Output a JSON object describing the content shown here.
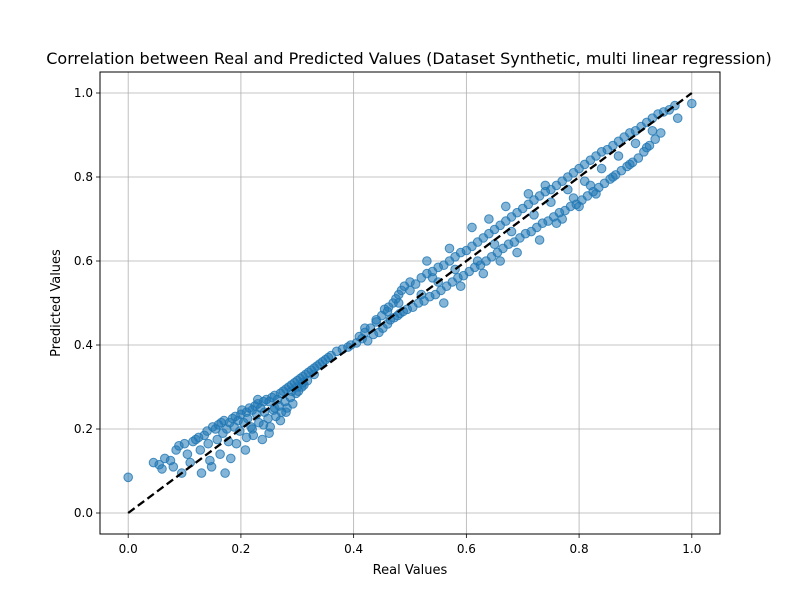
{
  "chart_data": {
    "type": "scatter",
    "title": "Correlation between Real and Predicted Values (Dataset Synthetic, multi linear regression)",
    "xlabel": "Real Values",
    "ylabel": "Predicted Values",
    "xlim": [
      -0.05,
      1.05
    ],
    "ylim": [
      -0.05,
      1.05
    ],
    "xticks": [
      0.0,
      0.2,
      0.4,
      0.6,
      0.8,
      1.0
    ],
    "yticks": [
      0.0,
      0.2,
      0.4,
      0.6,
      0.8,
      1.0
    ],
    "xtick_labels": [
      "0.0",
      "0.2",
      "0.4",
      "0.6",
      "0.8",
      "1.0"
    ],
    "ytick_labels": [
      "0.0",
      "0.2",
      "0.4",
      "0.6",
      "0.8",
      "1.0"
    ],
    "grid": true,
    "point_color": "#1f77b4",
    "point_alpha": 0.55,
    "reference_line": {
      "x": [
        0,
        1
      ],
      "y": [
        0,
        1
      ],
      "style": "dashed",
      "color": "#000000"
    },
    "series": [
      {
        "points": [
          [
            0.0,
            0.085
          ],
          [
            0.045,
            0.12
          ],
          [
            0.055,
            0.115
          ],
          [
            0.06,
            0.105
          ],
          [
            0.065,
            0.13
          ],
          [
            0.075,
            0.125
          ],
          [
            0.08,
            0.11
          ],
          [
            0.085,
            0.15
          ],
          [
            0.09,
            0.16
          ],
          [
            0.095,
            0.095
          ],
          [
            0.1,
            0.165
          ],
          [
            0.105,
            0.14
          ],
          [
            0.11,
            0.12
          ],
          [
            0.115,
            0.17
          ],
          [
            0.12,
            0.175
          ],
          [
            0.125,
            0.18
          ],
          [
            0.128,
            0.15
          ],
          [
            0.13,
            0.095
          ],
          [
            0.135,
            0.185
          ],
          [
            0.14,
            0.195
          ],
          [
            0.142,
            0.165
          ],
          [
            0.145,
            0.125
          ],
          [
            0.148,
            0.11
          ],
          [
            0.15,
            0.205
          ],
          [
            0.155,
            0.2
          ],
          [
            0.158,
            0.175
          ],
          [
            0.16,
            0.21
          ],
          [
            0.163,
            0.14
          ],
          [
            0.165,
            0.215
          ],
          [
            0.168,
            0.19
          ],
          [
            0.17,
            0.22
          ],
          [
            0.172,
            0.095
          ],
          [
            0.175,
            0.2
          ],
          [
            0.178,
            0.17
          ],
          [
            0.18,
            0.215
          ],
          [
            0.182,
            0.13
          ],
          [
            0.185,
            0.225
          ],
          [
            0.188,
            0.205
          ],
          [
            0.19,
            0.23
          ],
          [
            0.192,
            0.165
          ],
          [
            0.195,
            0.22
          ],
          [
            0.198,
            0.195
          ],
          [
            0.2,
            0.235
          ],
          [
            0.202,
            0.245
          ],
          [
            0.205,
            0.215
          ],
          [
            0.208,
            0.15
          ],
          [
            0.21,
            0.24
          ],
          [
            0.212,
            0.225
          ],
          [
            0.215,
            0.25
          ],
          [
            0.218,
            0.205
          ],
          [
            0.22,
            0.245
          ],
          [
            0.222,
            0.185
          ],
          [
            0.225,
            0.255
          ],
          [
            0.228,
            0.235
          ],
          [
            0.23,
            0.26
          ],
          [
            0.232,
            0.215
          ],
          [
            0.235,
            0.25
          ],
          [
            0.238,
            0.175
          ],
          [
            0.24,
            0.265
          ],
          [
            0.242,
            0.24
          ],
          [
            0.245,
            0.27
          ],
          [
            0.248,
            0.225
          ],
          [
            0.25,
            0.265
          ],
          [
            0.252,
            0.205
          ],
          [
            0.255,
            0.275
          ],
          [
            0.258,
            0.245
          ],
          [
            0.26,
            0.28
          ],
          [
            0.262,
            0.23
          ],
          [
            0.265,
            0.27
          ],
          [
            0.268,
            0.255
          ],
          [
            0.27,
            0.285
          ],
          [
            0.272,
            0.24
          ],
          [
            0.275,
            0.29
          ],
          [
            0.278,
            0.265
          ],
          [
            0.28,
            0.295
          ],
          [
            0.282,
            0.25
          ],
          [
            0.285,
            0.3
          ],
          [
            0.288,
            0.275
          ],
          [
            0.29,
            0.305
          ],
          [
            0.292,
            0.26
          ],
          [
            0.295,
            0.31
          ],
          [
            0.298,
            0.285
          ],
          [
            0.3,
            0.315
          ],
          [
            0.302,
            0.29
          ],
          [
            0.305,
            0.32
          ],
          [
            0.308,
            0.3
          ],
          [
            0.31,
            0.325
          ],
          [
            0.312,
            0.305
          ],
          [
            0.315,
            0.33
          ],
          [
            0.318,
            0.315
          ],
          [
            0.32,
            0.335
          ],
          [
            0.325,
            0.34
          ],
          [
            0.33,
            0.345
          ],
          [
            0.335,
            0.35
          ],
          [
            0.34,
            0.355
          ],
          [
            0.345,
            0.36
          ],
          [
            0.35,
            0.365
          ],
          [
            0.355,
            0.37
          ],
          [
            0.36,
            0.375
          ],
          [
            0.37,
            0.385
          ],
          [
            0.38,
            0.39
          ],
          [
            0.39,
            0.395
          ],
          [
            0.395,
            0.4
          ],
          [
            0.405,
            0.405
          ],
          [
            0.41,
            0.42
          ],
          [
            0.415,
            0.415
          ],
          [
            0.42,
            0.43
          ],
          [
            0.425,
            0.41
          ],
          [
            0.43,
            0.44
          ],
          [
            0.435,
            0.425
          ],
          [
            0.44,
            0.455
          ],
          [
            0.445,
            0.43
          ],
          [
            0.45,
            0.47
          ],
          [
            0.452,
            0.44
          ],
          [
            0.455,
            0.485
          ],
          [
            0.46,
            0.45
          ],
          [
            0.462,
            0.49
          ],
          [
            0.465,
            0.46
          ],
          [
            0.47,
            0.5
          ],
          [
            0.472,
            0.465
          ],
          [
            0.475,
            0.51
          ],
          [
            0.478,
            0.47
          ],
          [
            0.48,
            0.52
          ],
          [
            0.482,
            0.475
          ],
          [
            0.485,
            0.53
          ],
          [
            0.488,
            0.48
          ],
          [
            0.49,
            0.54
          ],
          [
            0.495,
            0.485
          ],
          [
            0.5,
            0.55
          ],
          [
            0.505,
            0.49
          ],
          [
            0.51,
            0.545
          ],
          [
            0.515,
            0.5
          ],
          [
            0.52,
            0.56
          ],
          [
            0.525,
            0.505
          ],
          [
            0.53,
            0.57
          ],
          [
            0.535,
            0.515
          ],
          [
            0.54,
            0.575
          ],
          [
            0.545,
            0.52
          ],
          [
            0.55,
            0.585
          ],
          [
            0.555,
            0.53
          ],
          [
            0.56,
            0.59
          ],
          [
            0.565,
            0.54
          ],
          [
            0.57,
            0.6
          ],
          [
            0.575,
            0.55
          ],
          [
            0.58,
            0.61
          ],
          [
            0.585,
            0.56
          ],
          [
            0.59,
            0.62
          ],
          [
            0.595,
            0.565
          ],
          [
            0.6,
            0.625
          ],
          [
            0.605,
            0.575
          ],
          [
            0.61,
            0.635
          ],
          [
            0.615,
            0.585
          ],
          [
            0.62,
            0.645
          ],
          [
            0.625,
            0.59
          ],
          [
            0.63,
            0.655
          ],
          [
            0.635,
            0.6
          ],
          [
            0.64,
            0.665
          ],
          [
            0.645,
            0.61
          ],
          [
            0.65,
            0.675
          ],
          [
            0.655,
            0.62
          ],
          [
            0.66,
            0.685
          ],
          [
            0.665,
            0.63
          ],
          [
            0.67,
            0.695
          ],
          [
            0.675,
            0.64
          ],
          [
            0.68,
            0.705
          ],
          [
            0.685,
            0.645
          ],
          [
            0.69,
            0.715
          ],
          [
            0.695,
            0.655
          ],
          [
            0.7,
            0.725
          ],
          [
            0.705,
            0.665
          ],
          [
            0.71,
            0.735
          ],
          [
            0.715,
            0.67
          ],
          [
            0.72,
            0.745
          ],
          [
            0.725,
            0.68
          ],
          [
            0.73,
            0.755
          ],
          [
            0.735,
            0.69
          ],
          [
            0.74,
            0.765
          ],
          [
            0.745,
            0.695
          ],
          [
            0.75,
            0.77
          ],
          [
            0.755,
            0.705
          ],
          [
            0.76,
            0.78
          ],
          [
            0.765,
            0.715
          ],
          [
            0.77,
            0.79
          ],
          [
            0.775,
            0.72
          ],
          [
            0.78,
            0.8
          ],
          [
            0.785,
            0.73
          ],
          [
            0.79,
            0.81
          ],
          [
            0.795,
            0.735
          ],
          [
            0.8,
            0.82
          ],
          [
            0.805,
            0.745
          ],
          [
            0.81,
            0.83
          ],
          [
            0.815,
            0.755
          ],
          [
            0.82,
            0.84
          ],
          [
            0.825,
            0.765
          ],
          [
            0.83,
            0.85
          ],
          [
            0.835,
            0.775
          ],
          [
            0.84,
            0.86
          ],
          [
            0.845,
            0.785
          ],
          [
            0.85,
            0.865
          ],
          [
            0.855,
            0.795
          ],
          [
            0.86,
            0.875
          ],
          [
            0.865,
            0.805
          ],
          [
            0.87,
            0.885
          ],
          [
            0.875,
            0.815
          ],
          [
            0.88,
            0.895
          ],
          [
            0.885,
            0.825
          ],
          [
            0.89,
            0.905
          ],
          [
            0.895,
            0.835
          ],
          [
            0.9,
            0.91
          ],
          [
            0.905,
            0.845
          ],
          [
            0.91,
            0.92
          ],
          [
            0.915,
            0.86
          ],
          [
            0.92,
            0.93
          ],
          [
            0.925,
            0.875
          ],
          [
            0.93,
            0.94
          ],
          [
            0.935,
            0.89
          ],
          [
            0.94,
            0.95
          ],
          [
            0.945,
            0.905
          ],
          [
            0.95,
            0.955
          ],
          [
            0.96,
            0.96
          ],
          [
            0.97,
            0.97
          ],
          [
            0.975,
            0.94
          ],
          [
            1.0,
            0.975
          ],
          [
            0.25,
            0.19
          ],
          [
            0.27,
            0.22
          ],
          [
            0.23,
            0.27
          ],
          [
            0.21,
            0.18
          ],
          [
            0.26,
            0.25
          ],
          [
            0.29,
            0.29
          ],
          [
            0.28,
            0.24
          ],
          [
            0.24,
            0.21
          ],
          [
            0.22,
            0.2
          ],
          [
            0.3,
            0.3
          ],
          [
            0.31,
            0.31
          ],
          [
            0.33,
            0.33
          ],
          [
            0.52,
            0.52
          ],
          [
            0.55,
            0.55
          ],
          [
            0.58,
            0.58
          ],
          [
            0.62,
            0.6
          ],
          [
            0.65,
            0.64
          ],
          [
            0.68,
            0.67
          ],
          [
            0.72,
            0.71
          ],
          [
            0.75,
            0.74
          ],
          [
            0.78,
            0.77
          ],
          [
            0.81,
            0.79
          ],
          [
            0.84,
            0.82
          ],
          [
            0.87,
            0.85
          ],
          [
            0.9,
            0.88
          ],
          [
            0.93,
            0.91
          ],
          [
            0.53,
            0.6
          ],
          [
            0.57,
            0.63
          ],
          [
            0.61,
            0.68
          ],
          [
            0.64,
            0.7
          ],
          [
            0.67,
            0.73
          ],
          [
            0.71,
            0.76
          ],
          [
            0.74,
            0.78
          ],
          [
            0.77,
            0.7
          ],
          [
            0.8,
            0.73
          ],
          [
            0.83,
            0.76
          ],
          [
            0.86,
            0.8
          ],
          [
            0.89,
            0.83
          ],
          [
            0.92,
            0.87
          ],
          [
            0.48,
            0.5
          ],
          [
            0.46,
            0.48
          ],
          [
            0.44,
            0.46
          ],
          [
            0.42,
            0.44
          ],
          [
            0.5,
            0.53
          ],
          [
            0.54,
            0.56
          ],
          [
            0.56,
            0.5
          ],
          [
            0.59,
            0.54
          ],
          [
            0.63,
            0.57
          ],
          [
            0.66,
            0.6
          ],
          [
            0.69,
            0.62
          ],
          [
            0.73,
            0.65
          ],
          [
            0.76,
            0.69
          ],
          [
            0.79,
            0.75
          ],
          [
            0.82,
            0.78
          ]
        ]
      }
    ]
  }
}
